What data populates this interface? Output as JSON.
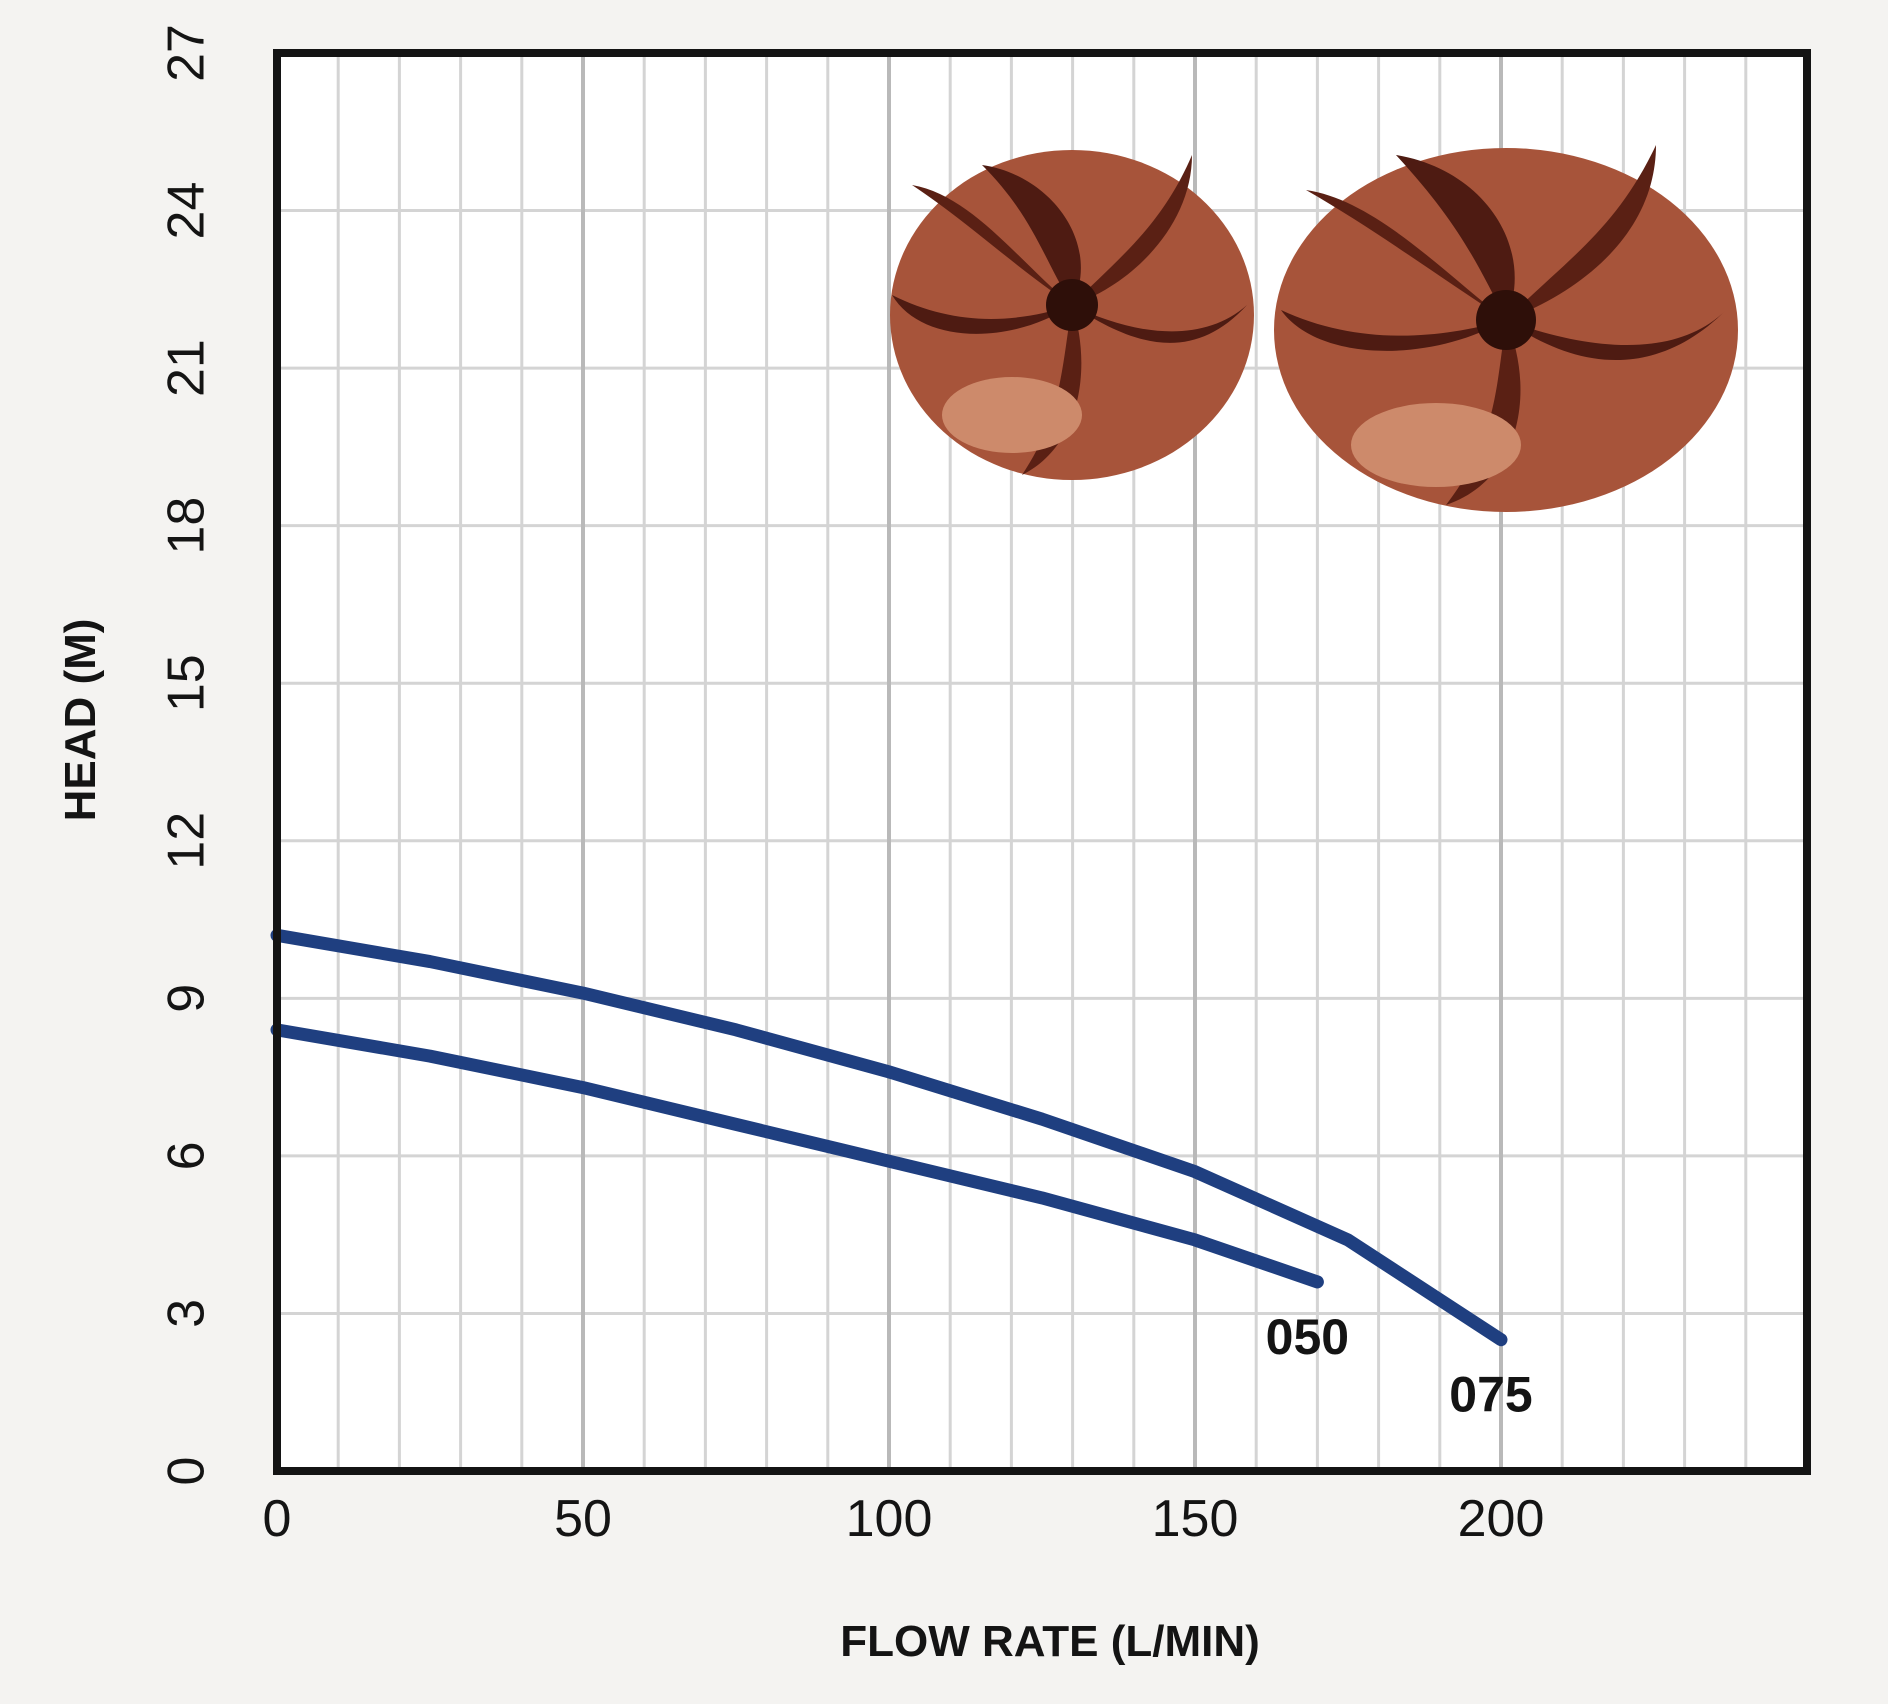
{
  "chart_data": {
    "type": "line",
    "xlabel": "FLOW RATE (L/MIN)",
    "ylabel": "HEAD (M)",
    "xlim": [
      0,
      250
    ],
    "ylim": [
      0,
      27
    ],
    "x_ticks": [
      "0",
      "50",
      "100",
      "150",
      "200"
    ],
    "y_ticks": [
      "0",
      "3",
      "6",
      "9",
      "12",
      "15",
      "18",
      "21",
      "24",
      "27"
    ],
    "grid": true,
    "series": [
      {
        "name": "050",
        "color": "#1f3f80",
        "x": [
          0,
          25,
          50,
          75,
          100,
          125,
          150,
          170
        ],
        "y": [
          8.4,
          7.9,
          7.3,
          6.6,
          5.9,
          5.2,
          4.4,
          3.6
        ]
      },
      {
        "name": "075",
        "color": "#1f3f80",
        "x": [
          0,
          25,
          50,
          75,
          100,
          125,
          150,
          175,
          200
        ],
        "y": [
          10.2,
          9.7,
          9.1,
          8.4,
          7.6,
          6.7,
          5.7,
          4.4,
          2.5
        ]
      }
    ]
  }
}
